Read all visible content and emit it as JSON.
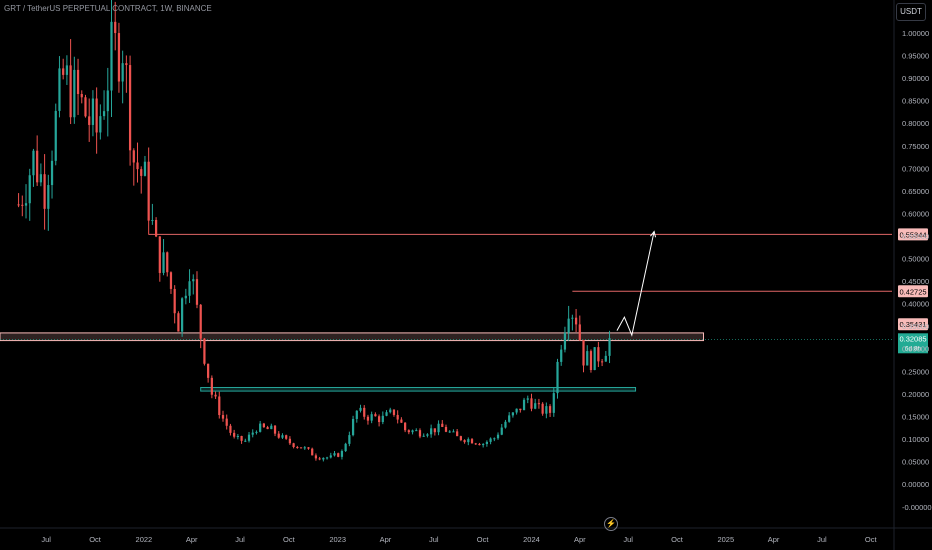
{
  "header": {
    "title": "GRT / TetherUS PERPETUAL CONTRACT, 1W, BINANCE",
    "currency": "USDT"
  },
  "icons": {
    "event": "lightning-icon"
  },
  "colors": {
    "up": "#26a69a",
    "down": "#ef5350",
    "resistance": "#e06666",
    "support_box": "#26a69a",
    "zone_fill": "#f8bbb9",
    "arrow": "#ffffff",
    "current_price_bg": "#22ab94",
    "background": "#000000"
  },
  "chart_data": {
    "type": "candlestick",
    "title": "GRT / TetherUS PERPETUAL CONTRACT, 1W, BINANCE",
    "ylabel": "USDT",
    "ylim": [
      -0.02,
      1.05
    ],
    "y_ticks": [
      "1.00000",
      "0.95000",
      "0.90000",
      "0.85000",
      "0.80000",
      "0.75000",
      "0.70000",
      "0.65000",
      "0.60000",
      "0.55000",
      "0.50000",
      "0.45000",
      "0.40000",
      "0.35000",
      "0.30000",
      "0.25000",
      "0.20000",
      "0.15000",
      "0.10000",
      "0.05000",
      "0.00000",
      "-0.00000"
    ],
    "y_tick_values": [
      1.0,
      0.95,
      0.9,
      0.85,
      0.8,
      0.75,
      0.7,
      0.65,
      0.6,
      0.55,
      0.5,
      0.45,
      0.4,
      0.35,
      0.3,
      0.25,
      0.2,
      0.15,
      0.1,
      0.05,
      0.0,
      -0.0
    ],
    "x_tick_labels": [
      "Jul",
      "Oct",
      "2022",
      "Apr",
      "Jul",
      "Oct",
      "2023",
      "Apr",
      "Jul",
      "Oct",
      "2024",
      "Apr",
      "Jul",
      "Oct",
      "2025",
      "Apr",
      "Jul",
      "Oct"
    ],
    "x_tick_dates": [
      "2021-07-01",
      "2021-10-01",
      "2022-01-01",
      "2022-04-01",
      "2022-07-01",
      "2022-10-01",
      "2023-01-01",
      "2023-04-01",
      "2023-07-01",
      "2023-10-01",
      "2024-01-01",
      "2024-04-01",
      "2024-07-01",
      "2024-10-01",
      "2025-01-01",
      "2025-04-01",
      "2025-07-01",
      "2025-10-01"
    ],
    "anchors": [
      [
        "2021-05-10",
        0.62
      ],
      [
        "2021-06-07",
        0.72
      ],
      [
        "2021-06-28",
        0.66
      ],
      [
        "2021-08-02",
        0.9
      ],
      [
        "2021-08-30",
        0.85
      ],
      [
        "2021-10-04",
        0.78
      ],
      [
        "2021-11-01",
        0.95
      ],
      [
        "2021-11-22",
        0.98
      ],
      [
        "2021-12-13",
        0.72
      ],
      [
        "2022-01-03",
        0.67
      ],
      [
        "2022-01-24",
        0.52
      ],
      [
        "2022-02-14",
        0.47
      ],
      [
        "2022-03-07",
        0.36
      ],
      [
        "2022-03-28",
        0.49
      ],
      [
        "2022-04-18",
        0.33
      ],
      [
        "2022-05-09",
        0.2
      ],
      [
        "2022-05-30",
        0.145
      ],
      [
        "2022-06-20",
        0.1
      ],
      [
        "2022-07-11",
        0.095
      ],
      [
        "2022-08-01",
        0.125
      ],
      [
        "2022-08-29",
        0.12
      ],
      [
        "2022-09-26",
        0.095
      ],
      [
        "2022-10-31",
        0.078
      ],
      [
        "2022-11-21",
        0.062
      ],
      [
        "2022-12-19",
        0.058
      ],
      [
        "2023-01-09",
        0.07
      ],
      [
        "2023-02-06",
        0.16
      ],
      [
        "2023-02-27",
        0.15
      ],
      [
        "2023-03-27",
        0.145
      ],
      [
        "2023-04-17",
        0.16
      ],
      [
        "2023-05-08",
        0.12
      ],
      [
        "2023-06-05",
        0.115
      ],
      [
        "2023-06-26",
        0.12
      ],
      [
        "2023-07-17",
        0.125
      ],
      [
        "2023-08-14",
        0.103
      ],
      [
        "2023-09-04",
        0.099
      ],
      [
        "2023-10-02",
        0.09
      ],
      [
        "2023-10-23",
        0.102
      ],
      [
        "2023-11-13",
        0.138
      ],
      [
        "2023-12-04",
        0.16
      ],
      [
        "2023-12-25",
        0.19
      ],
      [
        "2024-01-15",
        0.165
      ],
      [
        "2024-02-05",
        0.16
      ],
      [
        "2024-02-26",
        0.32
      ],
      [
        "2024-03-11",
        0.4
      ],
      [
        "2024-03-25",
        0.37
      ],
      [
        "2024-04-08",
        0.28
      ],
      [
        "2024-04-22",
        0.275
      ],
      [
        "2024-05-13",
        0.29
      ],
      [
        "2024-05-27",
        0.32
      ]
    ],
    "candle_start": "2021-05-10",
    "candle_end": "2024-05-27",
    "levels": [
      {
        "label": "0.55344",
        "value": 0.55344,
        "start": "2022-01-10",
        "end": "2025-12-31"
      },
      {
        "label": "0.42725",
        "value": 0.42725,
        "start": "2024-03-18",
        "end": "2025-12-31"
      },
      {
        "label": "0.35431",
        "value": 0.35431,
        "start": "2025-12-31",
        "end": "2025-12-31"
      }
    ],
    "zones": [
      {
        "name": "resistance-zone",
        "low": 0.318,
        "high": 0.335,
        "start": "2021-04-01",
        "end": "2024-11-20"
      },
      {
        "name": "support-zone",
        "low": 0.206,
        "high": 0.214,
        "start": "2022-04-18",
        "end": "2024-07-15"
      }
    ],
    "current_price": {
      "label": "0.32085",
      "value": 0.32085,
      "countdown": "6d 8h"
    },
    "projection": [
      [
        "2024-06-10",
        0.34
      ],
      [
        "2024-06-24",
        0.37
      ],
      [
        "2024-07-08",
        0.33
      ],
      [
        "2024-08-19",
        0.56
      ]
    ]
  }
}
